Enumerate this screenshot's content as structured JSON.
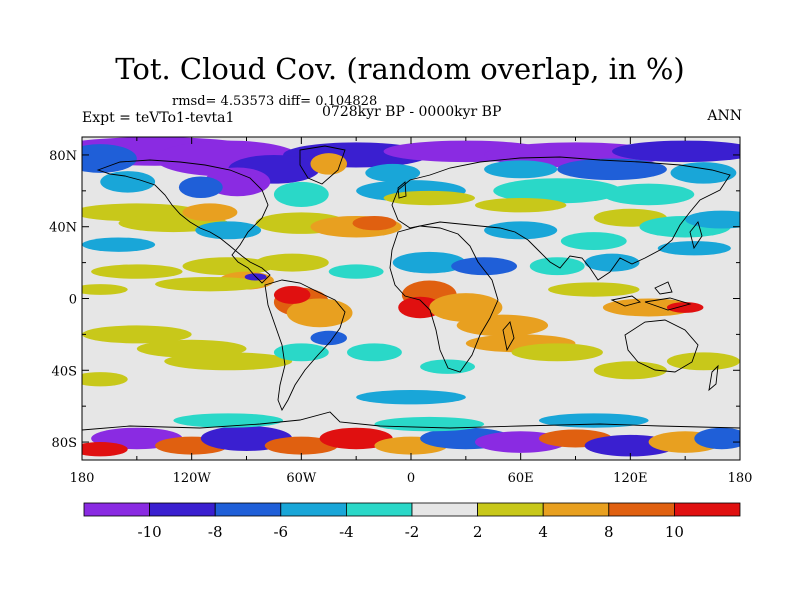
{
  "title": "Tot. Cloud Cov. (random overlap, in %)",
  "stats": "rmsd= 4.53573 diff= 0.104828",
  "experiment": "Expt = teVTo1-tevta1",
  "period": "0728kyr BP - 0000kyr BP",
  "season": "ANN",
  "lat_ticks": [
    "80N",
    "40N",
    "0",
    "40S",
    "80S"
  ],
  "lon_ticks": [
    "180",
    "120W",
    "60W",
    "0",
    "60E",
    "120E",
    "180"
  ],
  "colorbar": {
    "labels": [
      "-10",
      "-8",
      "-6",
      "-4",
      "-2",
      "2",
      "4",
      "8",
      "10"
    ],
    "colors": [
      "#8a2be2",
      "#3a1fd0",
      "#1f5fd8",
      "#19a6d8",
      "#2ad8c8",
      "#e6e6e6",
      "#c8c81a",
      "#e8a020",
      "#e06010",
      "#e01010"
    ]
  },
  "chart_data": {
    "type": "heatmap",
    "title": "Tot. Cloud Cov. (random overlap, in %)",
    "projection": "cylindrical equidistant",
    "xlim": [
      -180,
      180
    ],
    "ylim": [
      -90,
      90
    ],
    "levels": [
      -10,
      -8,
      -6,
      -4,
      -2,
      2,
      4,
      8,
      10
    ],
    "units": "%",
    "rmsd": 4.53573,
    "diff": 0.104828
  }
}
